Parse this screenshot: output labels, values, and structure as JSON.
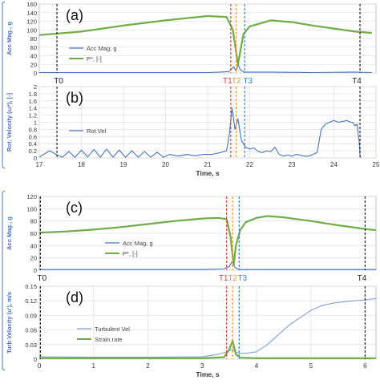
{
  "figure": {
    "accent_colors": {
      "acc": "#4472c4",
      "pstar": "#70ad47",
      "t1": "#e03c31",
      "t2": "#ed9a2a",
      "t3": "#2e86c8",
      "t_black": "#222222",
      "bracket": "#4472c4"
    }
  },
  "chart_data": [
    {
      "id": "a",
      "panel_label": "(a)",
      "type": "line",
      "ylabel": "Acc Mag., g",
      "ylim": [
        0,
        160
      ],
      "yticks": [
        "0",
        "20",
        "40",
        "60",
        "80",
        "100",
        "120",
        "140",
        "160"
      ],
      "x_domain": [
        17,
        25
      ],
      "grid": true,
      "legend": {
        "position": "left-center",
        "entries": [
          "Acc Mag, g",
          "P*, [-]"
        ]
      },
      "series": [
        {
          "name": "Acc Mag, g",
          "color": "#4472c4",
          "x": [
            17,
            19,
            21,
            21.5,
            21.62,
            21.68,
            21.72,
            21.76,
            21.8,
            21.85,
            21.9,
            22.5,
            23.5,
            24.5,
            24.9
          ],
          "values": [
            1,
            1,
            1,
            3,
            14,
            4,
            22,
            10,
            6,
            3,
            2,
            2,
            1,
            2,
            1
          ]
        },
        {
          "name": "P*, [-]",
          "color": "#70ad47",
          "x": [
            17,
            18,
            19,
            20,
            21,
            21.45,
            21.6,
            21.72,
            21.85,
            22.0,
            22.5,
            23.0,
            23.5,
            24.0,
            24.5,
            24.9
          ],
          "values": [
            88,
            96,
            110,
            122,
            132,
            130,
            100,
            20,
            90,
            108,
            122,
            118,
            110,
            103,
            96,
            93
          ]
        }
      ],
      "vlines": [
        {
          "label": "T0",
          "x": 17.42
        },
        {
          "label": "T1",
          "x": 21.55
        },
        {
          "label": "T2",
          "x": 21.68
        },
        {
          "label": "T3",
          "x": 21.88
        },
        {
          "label": "T4",
          "x": 24.62
        }
      ]
    },
    {
      "id": "b",
      "panel_label": "(b)",
      "type": "line",
      "ylabel": "Rot. Velocity (ω*), [-]",
      "ylim": [
        0,
        2
      ],
      "yticks": [
        "0",
        "0.2",
        "0.4",
        "0.6",
        "0.8",
        "1",
        "1.2",
        "1.4",
        "1.6",
        "1.8",
        "2"
      ],
      "xlim": [
        17,
        25
      ],
      "xticks": [
        "17",
        "18",
        "19",
        "20",
        "21",
        "22",
        "23",
        "24",
        "25"
      ],
      "xlabel": "Time, s",
      "grid": true,
      "legend": {
        "position": "left-center",
        "entries": [
          "Rot Vel"
        ]
      },
      "series": [
        {
          "name": "Rot Vel",
          "color": "#4472c4",
          "x": [
            17.0,
            17.1,
            17.25,
            17.4,
            17.55,
            17.7,
            17.85,
            18.0,
            18.15,
            18.3,
            18.45,
            18.6,
            18.75,
            18.9,
            19.05,
            19.2,
            19.35,
            19.5,
            19.65,
            19.8,
            19.95,
            20.1,
            20.3,
            20.5,
            20.7,
            20.9,
            21.1,
            21.3,
            21.45,
            21.52,
            21.58,
            21.65,
            21.72,
            21.8,
            21.9,
            22.0,
            22.1,
            22.2,
            22.3,
            22.4,
            22.5,
            22.6,
            22.7,
            22.8,
            22.9,
            23.0,
            23.1,
            23.2,
            23.3,
            23.4,
            23.5,
            23.6,
            23.7,
            23.8,
            23.9,
            24.0,
            24.1,
            24.2,
            24.3,
            24.4,
            24.45,
            24.5,
            24.55,
            24.6,
            24.62,
            24.65
          ],
          "values": [
            0.02,
            0.1,
            0.2,
            0.1,
            0.02,
            0.18,
            0.02,
            0.22,
            0.03,
            0.24,
            0.02,
            0.25,
            0.02,
            0.22,
            0.02,
            0.2,
            0.02,
            0.18,
            0.02,
            0.16,
            0.02,
            0.1,
            0.05,
            0.1,
            0.06,
            0.1,
            0.1,
            0.15,
            0.2,
            0.7,
            1.4,
            0.8,
            1.1,
            0.5,
            0.3,
            0.25,
            0.28,
            0.18,
            0.15,
            0.2,
            0.18,
            0.3,
            0.1,
            0.05,
            0.08,
            0.05,
            0.1,
            0.08,
            0.05,
            0.05,
            0.1,
            0.15,
            0.8,
            0.95,
            1.0,
            1.05,
            1.0,
            1.02,
            1.05,
            1.0,
            1.0,
            0.9,
            0.95,
            0.45,
            0.05,
            0.0
          ]
        }
      ],
      "vlines": [
        {
          "label": "T0",
          "x": 17.42
        },
        {
          "label": "T1",
          "x": 21.55
        },
        {
          "label": "T2",
          "x": 21.68
        },
        {
          "label": "T3",
          "x": 21.88
        },
        {
          "label": "T4",
          "x": 24.62
        }
      ]
    },
    {
      "id": "c",
      "panel_label": "(c)",
      "type": "line",
      "ylabel": "Acc Mag., g",
      "ylim": [
        0,
        120
      ],
      "yticks": [
        "0",
        "20",
        "40",
        "60",
        "80",
        "100",
        "120"
      ],
      "x_domain": [
        0,
        6.2
      ],
      "grid": true,
      "legend": {
        "position": "center",
        "entries": [
          "Acc Mag, g",
          "P*, [-]"
        ]
      },
      "series": [
        {
          "name": "Acc Mag, g",
          "color": "#4472c4",
          "x": [
            0,
            1,
            2,
            3,
            3.4,
            3.5,
            3.55,
            3.6,
            3.65,
            3.7,
            4,
            5,
            6.2
          ],
          "values": [
            1,
            1,
            1,
            1,
            2,
            6,
            14,
            5,
            2,
            1,
            1,
            1,
            1
          ]
        },
        {
          "name": "P*, [-]",
          "color": "#70ad47",
          "x": [
            0,
            0.5,
            1,
            1.5,
            2,
            2.5,
            3,
            3.3,
            3.45,
            3.52,
            3.58,
            3.62,
            3.7,
            3.8,
            4.0,
            4.2,
            4.5,
            5.0,
            5.5,
            6.0,
            6.2
          ],
          "values": [
            61,
            63,
            66,
            70,
            75,
            80,
            84,
            85,
            83,
            55,
            8,
            40,
            65,
            78,
            85,
            88,
            86,
            80,
            73,
            67,
            65
          ]
        }
      ],
      "vlines": [
        {
          "label": "T0",
          "x": 0.02
        },
        {
          "label": "T1",
          "x": 3.45
        },
        {
          "label": "T2",
          "x": 3.56
        },
        {
          "label": "T3",
          "x": 3.68
        },
        {
          "label": "T4",
          "x": 6.0
        }
      ]
    },
    {
      "id": "d",
      "panel_label": "(d)",
      "type": "line",
      "ylabel": "Turb Velocity (u'), m/s",
      "ylim": [
        0,
        0.15
      ],
      "yticks": [
        "0",
        "0.03",
        "0.06",
        "0.09",
        "0.12",
        "0.15"
      ],
      "xlim": [
        0,
        6.2
      ],
      "xticks": [
        "0",
        "1",
        "2",
        "3",
        "4",
        "5",
        "6"
      ],
      "xlabel": "Time, s",
      "grid": true,
      "legend": {
        "position": "left-center",
        "entries": [
          "Turbulent Vel",
          "Strain rate"
        ]
      },
      "series": [
        {
          "name": "Turbulent Vel",
          "color": "#7f9fd6",
          "x": [
            0,
            1,
            2,
            3,
            3.3,
            3.45,
            3.55,
            3.6,
            3.7,
            3.8,
            4.0,
            4.2,
            4.4,
            4.6,
            4.8,
            5.0,
            5.2,
            5.4,
            5.6,
            5.8,
            6.0,
            6.2
          ],
          "values": [
            0.005,
            0.004,
            0.004,
            0.005,
            0.01,
            0.015,
            0.02,
            0.015,
            0.012,
            0.012,
            0.015,
            0.03,
            0.05,
            0.07,
            0.085,
            0.1,
            0.11,
            0.115,
            0.118,
            0.12,
            0.122,
            0.125
          ]
        },
        {
          "name": "Strain rate",
          "color": "#70ad47",
          "x": [
            0,
            1,
            2,
            3,
            3.4,
            3.5,
            3.56,
            3.62,
            3.7,
            4,
            5,
            6.2
          ],
          "values": [
            0.002,
            0.002,
            0.002,
            0.002,
            0.004,
            0.02,
            0.038,
            0.01,
            0.003,
            0.002,
            0.002,
            0.002
          ]
        }
      ],
      "vlines": [
        {
          "label": "T0",
          "x": 0.02
        },
        {
          "label": "T1",
          "x": 3.45
        },
        {
          "label": "T2",
          "x": 3.56
        },
        {
          "label": "T3",
          "x": 3.68
        },
        {
          "label": "T4",
          "x": 6.0
        }
      ]
    }
  ]
}
